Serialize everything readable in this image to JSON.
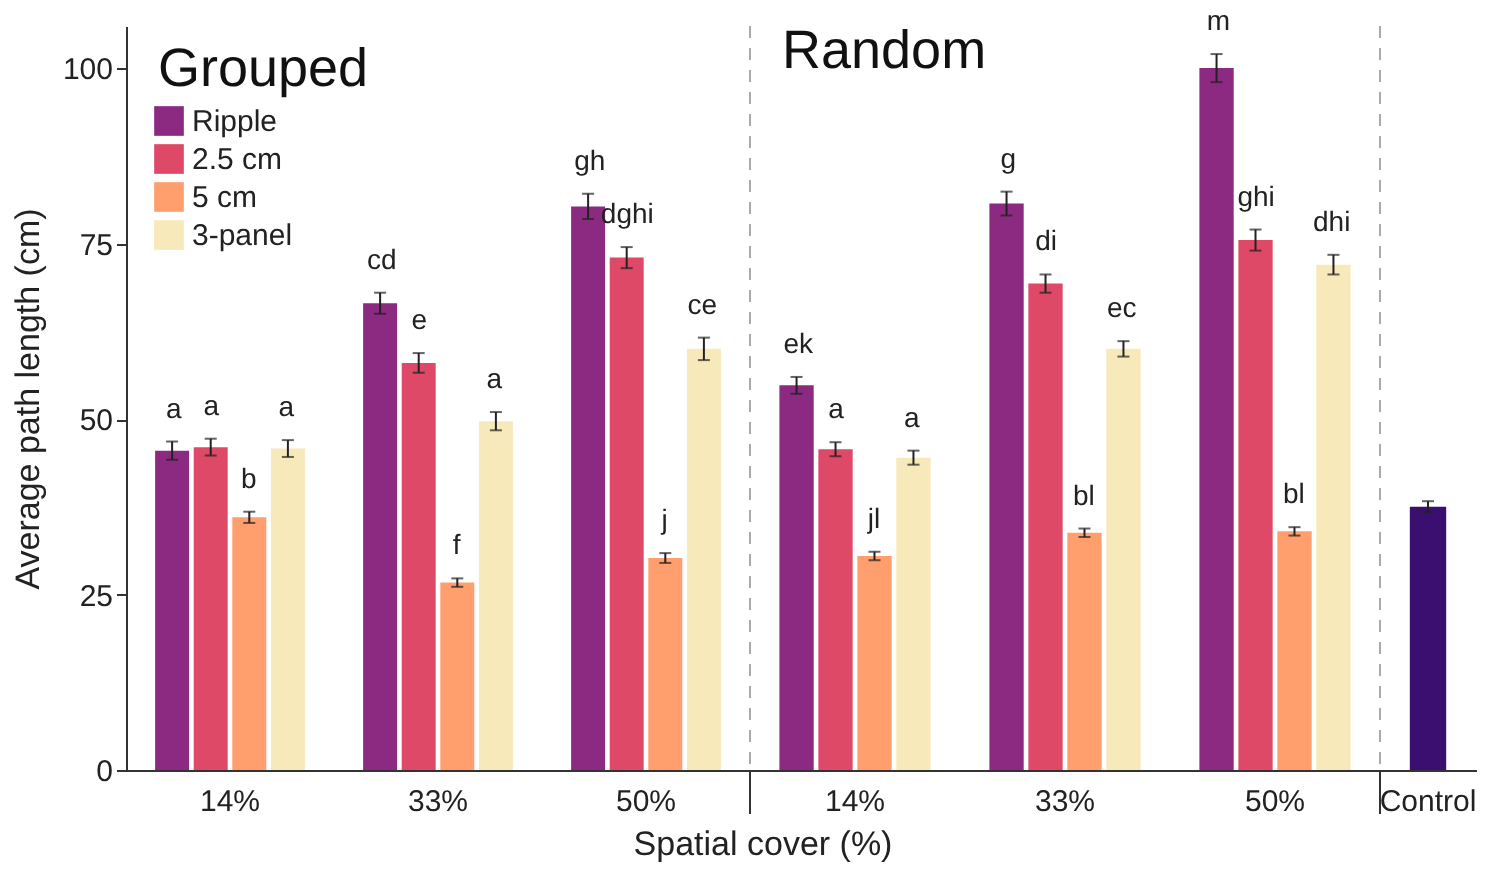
{
  "chart_data": [
    {
      "type": "bar",
      "title": "Grouped",
      "xlabel": "Spatial cover (%)",
      "ylabel": "Average path length (cm)",
      "categories": [
        "14%",
        "33%",
        "50%"
      ],
      "ylim": [
        0,
        106
      ],
      "yticks": [
        0,
        25,
        50,
        75,
        100
      ],
      "legend": "top left",
      "series": [
        {
          "name": "Ripple",
          "color": "#8c2981",
          "values": [
            45.5,
            66.5,
            80.3
          ],
          "errors": [
            1.3,
            1.5,
            1.8
          ],
          "value_labels": [
            "a",
            "cd",
            "gh"
          ]
        },
        {
          "name": "2.5 cm",
          "color": "#de4968",
          "values": [
            46,
            58,
            73
          ],
          "errors": [
            1.2,
            1.4,
            1.5
          ],
          "value_labels": [
            "a",
            "e",
            "dghi"
          ]
        },
        {
          "name": "5 cm",
          "color": "#fe9f6d",
          "values": [
            36,
            26.7,
            30.2
          ],
          "errors": [
            0.8,
            0.6,
            0.7
          ],
          "value_labels": [
            "b",
            "f",
            "j"
          ]
        },
        {
          "name": "3-panel",
          "color": "#f8e9bb",
          "values": [
            45.8,
            49.7,
            60
          ],
          "errors": [
            1.2,
            1.3,
            1.6
          ],
          "value_labels": [
            "a",
            "a",
            "ce"
          ]
        }
      ]
    },
    {
      "type": "bar",
      "title": "Random",
      "categories": [
        "14%",
        "33%",
        "50%"
      ],
      "ylim": [
        0,
        106
      ],
      "yticks": [
        0,
        25,
        50,
        75,
        100
      ],
      "tick_labels": "x",
      "series": [
        {
          "color": "#8c2981",
          "values": [
            54.8,
            80.7,
            100
          ],
          "errors": [
            1.2,
            1.7,
            2
          ],
          "value_labels": [
            "ek",
            "g",
            "m"
          ]
        },
        {
          "color": "#de4968",
          "values": [
            45.7,
            69.3,
            75.5
          ],
          "errors": [
            1,
            1.3,
            1.5
          ],
          "value_labels": [
            "a",
            "di",
            "ghi"
          ]
        },
        {
          "color": "#fe9f6d",
          "values": [
            30.5,
            33.8,
            34
          ],
          "errors": [
            0.6,
            0.6,
            0.6
          ],
          "value_labels": [
            "jl",
            "bl",
            "bl"
          ]
        },
        {
          "color": "#f8e9bb",
          "values": [
            44.5,
            60,
            72
          ],
          "errors": [
            1,
            1.1,
            1.4
          ],
          "value_labels": [
            "a",
            "ec",
            "dhi"
          ]
        }
      ]
    },
    {
      "type": "bar",
      "categories": [
        "Control"
      ],
      "ylim": [
        0,
        106
      ],
      "yticks": [
        0,
        25,
        50,
        75,
        100
      ],
      "tick_labels": "x",
      "series": [
        {
          "color": "#3b0f70",
          "values": [
            37.5
          ],
          "errors": [
            0.8
          ]
        }
      ]
    }
  ]
}
